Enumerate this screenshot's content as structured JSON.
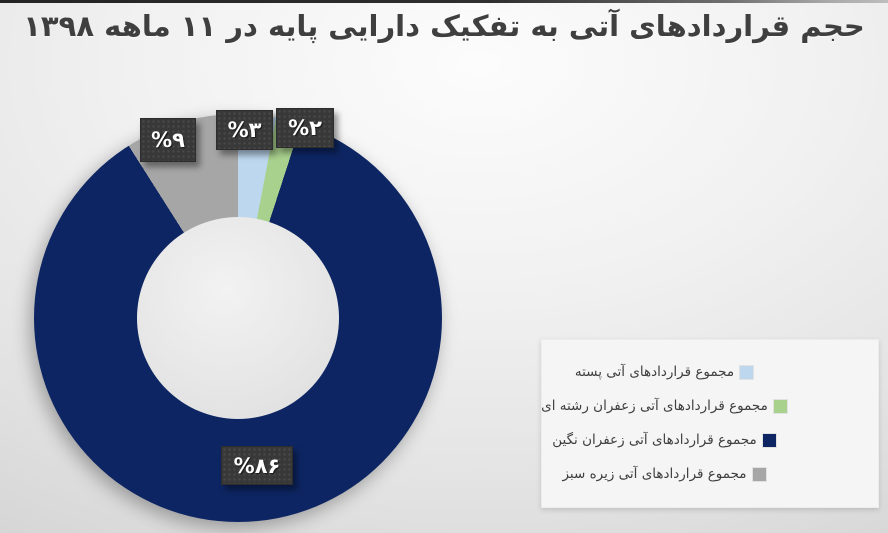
{
  "title": "حجم قراردادهای آتی به تفکیک دارایی پایه در ۱۱ ماهه ۱۳۹۸",
  "chart_data": {
    "type": "pie",
    "subtype": "donut",
    "title": "حجم قراردادهای آتی به تفکیک دارایی پایه در ۱۱ ماهه ۱۳۹۸",
    "direction": "clockwise",
    "start_angle_deg": 0,
    "hole_ratio": 0.49,
    "legend_position": "bottom-right",
    "grid": false,
    "slices": [
      {
        "name": "مجموع قراردادهای آتی پسته",
        "value": 3,
        "percent_label": "%۳",
        "color": "#BDD7EE"
      },
      {
        "name": "مجموع قراردادهای آتی زعفران رشته ای",
        "value": 2,
        "percent_label": "%۲",
        "color": "#A9D18E"
      },
      {
        "name": "مجموع قراردادهای آتی زعفران نگین",
        "value": 86,
        "percent_label": "%۸۶",
        "color": "#0D2663"
      },
      {
        "name": "مجموع قراردادهای آتی زیره سبز",
        "value": 9,
        "percent_label": "%۹",
        "color": "#A6A6A6"
      }
    ]
  },
  "style_colors": {
    "title_text": "#3F3F3F",
    "label_box_bg": "#383838",
    "label_text": "#FFFFFF",
    "legend_bg": "#F5F5F5",
    "legend_text": "#3F3F3F"
  }
}
